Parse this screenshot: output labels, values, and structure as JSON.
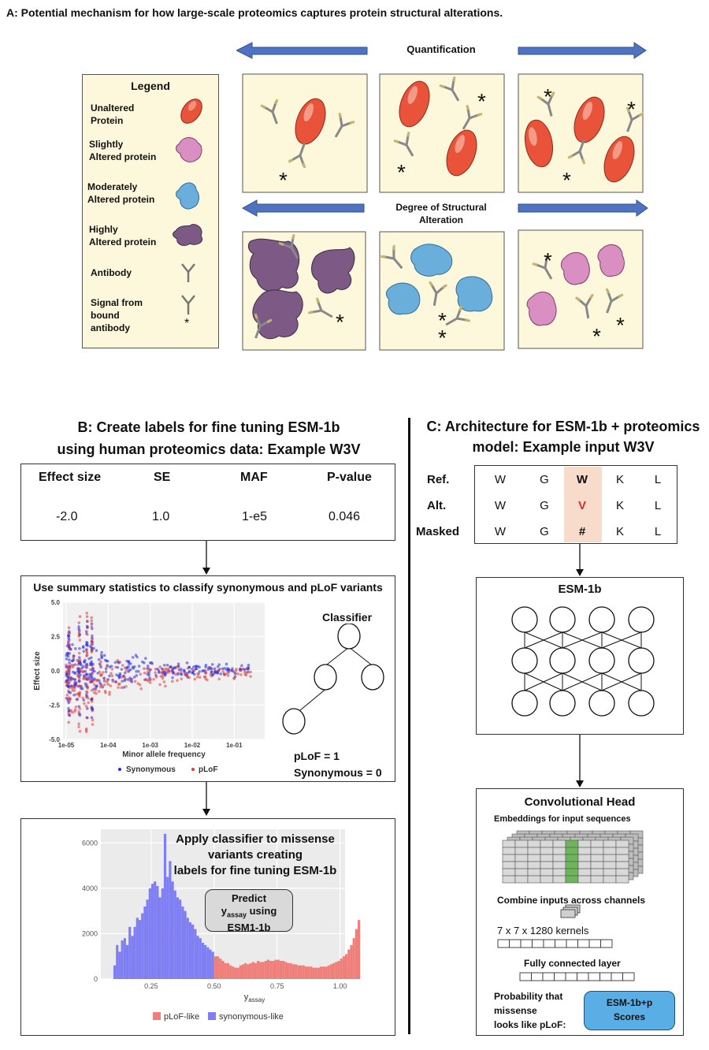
{
  "panelA": {
    "title": "A: Potential mechanism for how large-scale proteomics captures protein structural alterations.",
    "quantification_label": "Quantification",
    "structural_label_1": "Degree of Structural",
    "structural_label_2": "Alteration",
    "legend": {
      "title": "Legend",
      "items": [
        {
          "line1": "Unaltered",
          "line2": "Protein",
          "color": "#e8533a"
        },
        {
          "line1": "Slightly",
          "line2": "Altered  protein",
          "color": "#d98fc1"
        },
        {
          "line1": "Moderately",
          "line2": "Altered protein",
          "color": "#6aaedc"
        },
        {
          "line1": "Highly",
          "line2": "Altered protein",
          "color": "#7c5a85"
        },
        {
          "line1": "Antibody",
          "line2": ""
        },
        {
          "line1": "Signal from",
          "line2": "bound",
          "line3": "antibody"
        }
      ]
    }
  },
  "panelB": {
    "title_1": "B: Create labels for fine tuning ESM-1b",
    "title_2": "using human proteomics data: Example W3V",
    "table": {
      "headers": [
        "Effect size",
        "SE",
        "MAF",
        "P-value"
      ],
      "values": [
        "-2.0",
        "1.0",
        "1-e5",
        "0.046"
      ]
    },
    "scatter_box_title": "Use summary statistics to classify synonymous and pLoF variants",
    "classifier_title": "Classifier",
    "plof_eq": "pLoF = 1",
    "syn_eq": "Synonymous = 0",
    "apply_1": "Apply classifier to missense",
    "apply_2": "variants creating",
    "apply_3": "labels for fine tuning ESM-1b",
    "predict_1": "Predict",
    "predict_2a": "y",
    "predict_2sub": "assay",
    "predict_2b": " using",
    "predict_3": "ESM1-1b"
  },
  "panelC": {
    "title_1": "C: Architecture for ESM-1b + proteomics",
    "title_2": "model: Example input W3V",
    "seq_rows": [
      {
        "label": "Ref.",
        "cells": [
          "W",
          "G",
          "W",
          "K",
          "L"
        ]
      },
      {
        "label": "Alt.",
        "cells": [
          "W",
          "G",
          "V",
          "K",
          "L"
        ]
      },
      {
        "label": "Masked",
        "cells": [
          "W",
          "G",
          "#",
          "K",
          "L"
        ]
      }
    ],
    "esm_title": "ESM-1b",
    "conv_title": "Convolutional Head",
    "embeddings_label": "Embeddings for input sequences",
    "combine_label": "Combine inputs across channels",
    "kernels_label": "7 x 7 x 1280 kernels",
    "fc_label": "Fully connected layer",
    "prob_1": "Probability that",
    "prob_2": "missense",
    "prob_3": "looks like pLoF:",
    "scores_1": "ESM-1b+p",
    "scores_2": "Scores",
    "colors": {
      "highlight": "#f7dccb",
      "alt": "#d62f2f",
      "scores": "#5aaee6",
      "embed_green": "#6db55a"
    }
  },
  "chart_data": [
    {
      "type": "scatter",
      "xlabel": "Minor allele frequency",
      "ylabel": "Effect size",
      "x_scale": "log",
      "xticks": [
        "1e-05",
        "1e-04",
        "1e-03",
        "1e-02",
        "1e-01"
      ],
      "yticks": [
        "5.0",
        "2.5",
        "0.0",
        "-2.5",
        "-5.0"
      ],
      "ylim": [
        -5,
        5
      ],
      "series": [
        {
          "name": "Synonymous",
          "color": "#2b2bdb"
        },
        {
          "name": "pLoF",
          "color": "#e23b3b"
        }
      ],
      "legend_position": "bottom"
    },
    {
      "type": "bar",
      "xlabel_main": "y",
      "xlabel_sub": "assay",
      "xticks": [
        "0.25",
        "0.50",
        "0.75",
        "1.00"
      ],
      "yticks": [
        "6000",
        "4000",
        "2000",
        "0"
      ],
      "ylim": [
        0,
        6600
      ],
      "threshold": 0.5,
      "bin_start": 0.1,
      "bin_width": 0.01,
      "values": [
        600,
        1500,
        1200,
        1700,
        1800,
        1500,
        2300,
        1900,
        2300,
        2700,
        2600,
        2900,
        3200,
        3500,
        4000,
        4200,
        4300,
        4100,
        3600,
        4000,
        6400,
        4500,
        5200,
        4300,
        3900,
        3600,
        3500,
        3200,
        3000,
        2700,
        2500,
        2400,
        2200,
        1900,
        1800,
        1600,
        1500,
        1400,
        1300,
        1200,
        1000,
        1000,
        900,
        800,
        700,
        700,
        600,
        550,
        500,
        500,
        600,
        650,
        700,
        650,
        700,
        750,
        700,
        800,
        750,
        750,
        800,
        850,
        800,
        800,
        850,
        850,
        800,
        800,
        750,
        700,
        700,
        650,
        650,
        600,
        600,
        600,
        550,
        550,
        550,
        500,
        500,
        500,
        550,
        550,
        550,
        600,
        650,
        700,
        750,
        800,
        900,
        1000,
        1100,
        1300,
        1500,
        1800,
        2200,
        2600
      ],
      "series": [
        {
          "name": "pLoF-like",
          "color": "#ef7f7a"
        },
        {
          "name": "synonymous-like",
          "color": "#7f7ef2"
        }
      ],
      "legend_position": "bottom"
    }
  ]
}
